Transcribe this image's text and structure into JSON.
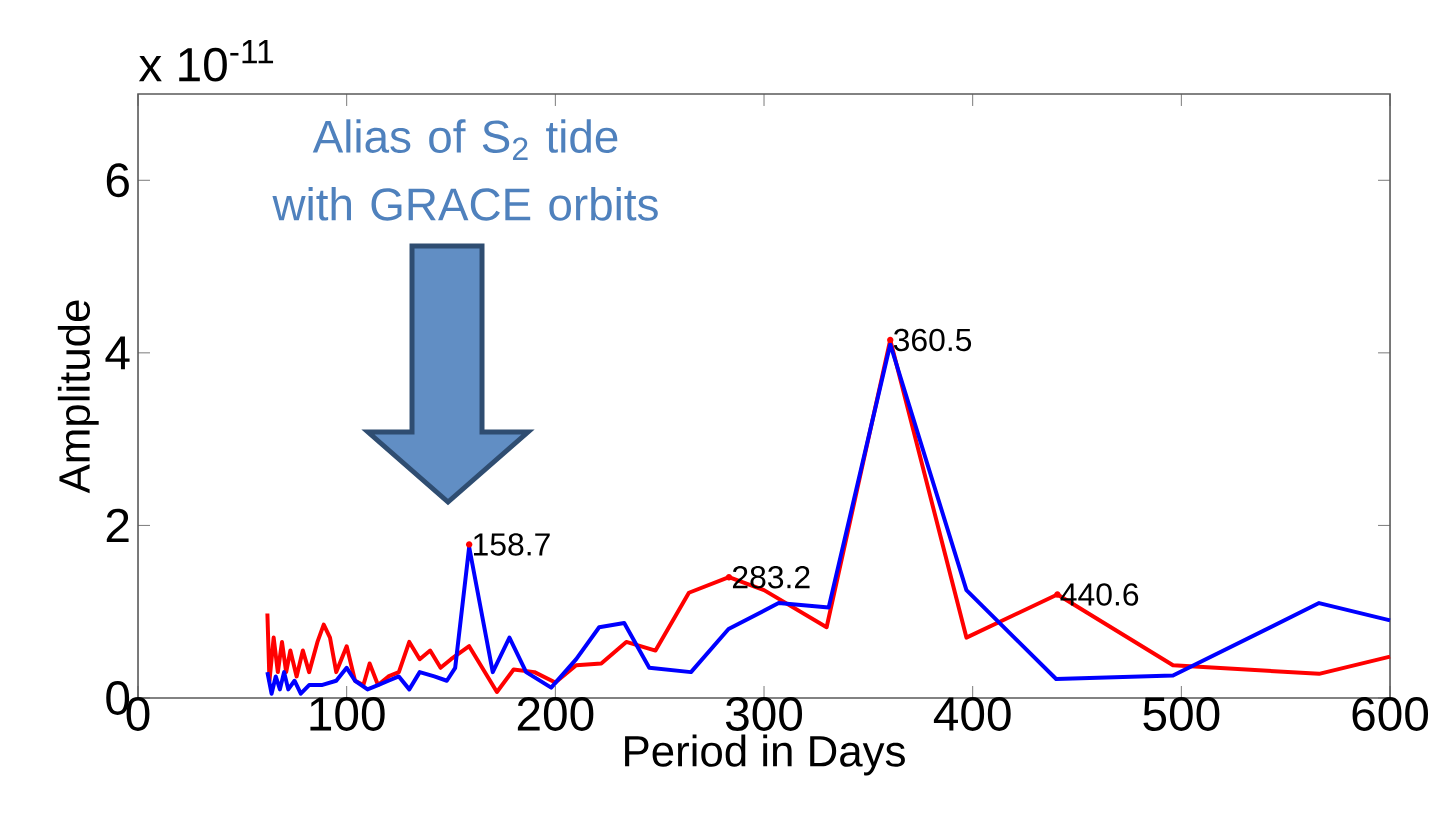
{
  "chart_data": {
    "type": "line",
    "xlabel": "Period in Days",
    "ylabel": "Amplitude",
    "xlim": [
      0,
      600
    ],
    "xticks": [
      0,
      100,
      200,
      300,
      400,
      500,
      600
    ],
    "ylim": [
      0,
      7
    ],
    "yticks": [
      0,
      2,
      4,
      6
    ],
    "grid": false,
    "marker": "none",
    "line_style": "solid",
    "series": [
      {
        "color": "#ff0000",
        "x": [
          62,
          63,
          65,
          67,
          69,
          71,
          73,
          76,
          79,
          82,
          86,
          89,
          92,
          95,
          100,
          104,
          108,
          111,
          115,
          120,
          125,
          130,
          135,
          140,
          145,
          150,
          158.7,
          172,
          180,
          190,
          200,
          210,
          222,
          234,
          248,
          264,
          283.2,
          300,
          330,
          360.5,
          397,
          440.6,
          496,
          566,
          600
        ],
        "values": [
          0.98,
          0.2,
          0.7,
          0.3,
          0.65,
          0.3,
          0.55,
          0.25,
          0.55,
          0.3,
          0.65,
          0.85,
          0.7,
          0.3,
          0.6,
          0.2,
          0.15,
          0.4,
          0.15,
          0.25,
          0.3,
          0.65,
          0.45,
          0.55,
          0.35,
          0.45,
          0.6,
          0.07,
          0.33,
          0.3,
          0.18,
          0.38,
          0.4,
          0.65,
          0.55,
          1.22,
          1.4,
          1.25,
          0.82,
          4.15,
          0.7,
          1.2,
          0.38,
          0.28,
          0.48
        ]
      },
      {
        "color": "#0000ff",
        "x": [
          62,
          64,
          66,
          68,
          70,
          72,
          75,
          78,
          82,
          88,
          95,
          100,
          104,
          110,
          115,
          120,
          125,
          130,
          135,
          142,
          148,
          152,
          158.7,
          170,
          178,
          186,
          198,
          210,
          221,
          233,
          245,
          265,
          283,
          307,
          331,
          360.5,
          397,
          440,
          496,
          566,
          600
        ],
        "values": [
          0.3,
          0.05,
          0.25,
          0.1,
          0.3,
          0.1,
          0.2,
          0.05,
          0.15,
          0.15,
          0.2,
          0.35,
          0.2,
          0.1,
          0.15,
          0.2,
          0.25,
          0.1,
          0.3,
          0.25,
          0.2,
          0.35,
          1.75,
          0.3,
          0.7,
          0.3,
          0.12,
          0.45,
          0.82,
          0.87,
          0.35,
          0.3,
          0.8,
          1.1,
          1.05,
          4.1,
          1.25,
          0.22,
          0.26,
          1.1,
          0.9
        ]
      }
    ],
    "annotations": [
      {
        "text": "158.7",
        "x": 158.7,
        "y": 1.78
      },
      {
        "text": "283.2",
        "x": 283.2,
        "y": 1.4
      },
      {
        "text": "360.5",
        "x": 360.5,
        "y": 4.15
      },
      {
        "text": "440.6",
        "x": 440.6,
        "y": 1.2
      },
      "x 10$^{-11}$",
      "Alias of S$_{2}$ tide with GRACE orbits"
    ]
  }
}
